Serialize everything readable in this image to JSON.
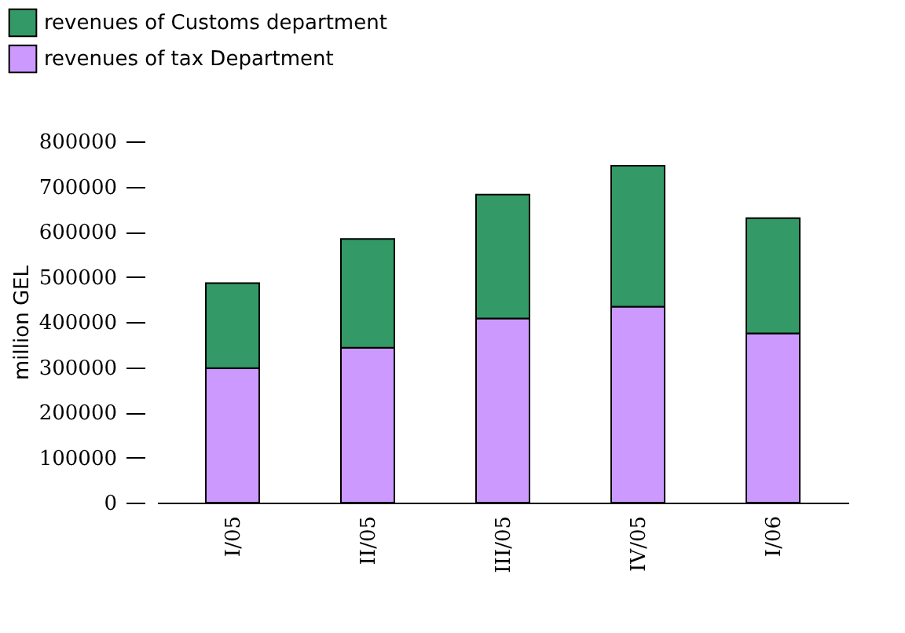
{
  "chart_data": {
    "type": "bar",
    "stacked": true,
    "ylabel": "million GEL",
    "categories": [
      "I/05",
      "II/05",
      "III/05",
      "IV/05",
      "I/06"
    ],
    "series": [
      {
        "name": "revenues of tax Department",
        "color": "#cc99ff",
        "values": [
          298000,
          343000,
          408000,
          434000,
          375000
        ]
      },
      {
        "name": "revenues of Customs department",
        "color": "#339966",
        "values": [
          188000,
          241000,
          274000,
          312000,
          255000
        ]
      }
    ],
    "ylim": [
      0,
      800000
    ],
    "yticks": [
      0,
      100000,
      200000,
      300000,
      400000,
      500000,
      600000,
      700000,
      800000
    ],
    "grid": false,
    "legend": "top left"
  }
}
